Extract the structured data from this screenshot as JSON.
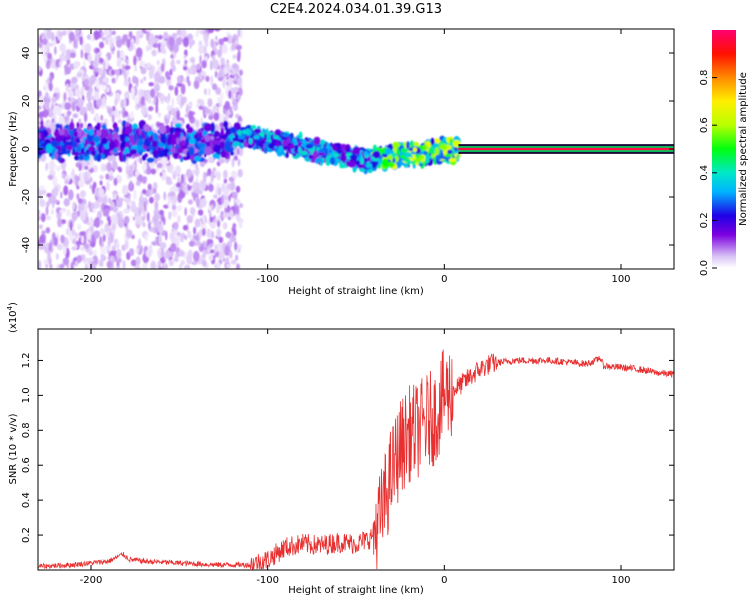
{
  "figure": {
    "title": "C2E4.2024.034.01.39.G13"
  },
  "chart_data": [
    {
      "type": "heatmap",
      "name": "spectrogram",
      "xlabel": "Height of straight line (km)",
      "ylabel": "Frequency (Hz)",
      "xlim": [
        -230,
        130
      ],
      "ylim": [
        -50,
        50
      ],
      "xticks": [
        -200,
        -100,
        0,
        100
      ],
      "xtick_labels": [
        "-200",
        "-100",
        "0",
        "100"
      ],
      "yticks": [
        -40,
        -20,
        0,
        20,
        40
      ],
      "ytick_labels": [
        "-40",
        "-20",
        "0",
        "20",
        "40"
      ],
      "colorbar": {
        "label": "Normalized spectral amplitude",
        "range": [
          0,
          1
        ],
        "ticks": [
          0,
          0.2,
          0.4,
          0.6,
          0.8
        ],
        "tick_labels": [
          "0.0",
          "0.2",
          "0.4",
          "0.6",
          "0.8"
        ],
        "colormap": [
          "#ffffff",
          "#d4b8f5",
          "#7a00e0",
          "#2000e0",
          "#00b0ff",
          "#00e8c0",
          "#00ff00",
          "#c8ff00",
          "#ffff00",
          "#ff8000",
          "#ff0000",
          "#ff0060"
        ]
      },
      "features": [
        {
          "label": "scattered noise",
          "x_range": [
            -230,
            -115
          ],
          "freq_range": [
            -50,
            50
          ],
          "amplitude": 0.12
        },
        {
          "label": "broadband band",
          "x_range": [
            -230,
            -120
          ],
          "freq_center": 3,
          "freq_halfwidth": 8,
          "amplitude": 0.3
        },
        {
          "label": "descending trace",
          "x_range": [
            -120,
            -40
          ],
          "freq_start": 6,
          "freq_end": -5,
          "amplitude": 0.35
        },
        {
          "label": "converging trace",
          "x_range": [
            -40,
            8
          ],
          "freq_start": -4,
          "freq_end": 0,
          "amplitude": 0.55
        },
        {
          "label": "stable tone",
          "x_range": [
            8,
            130
          ],
          "freq_center": 0,
          "freq_halfwidth": 1.2,
          "amplitude": 0.97
        }
      ]
    },
    {
      "type": "line",
      "name": "snr",
      "xlabel": "Height of straight line (km)",
      "ylabel": "SNR (10 * v/v)",
      "y_multiplier_label": "(x10",
      "y_multiplier_exp": "4",
      "xlim": [
        -230,
        130
      ],
      "ylim": [
        0,
        1.38
      ],
      "xticks": [
        -200,
        -100,
        0,
        100
      ],
      "xtick_labels": [
        "-200",
        "-100",
        "0",
        "100"
      ],
      "yticks": [
        0.2,
        0.4,
        0.6,
        0.8,
        1.0,
        1.2
      ],
      "ytick_labels": [
        "0.2",
        "0.4",
        "0.6",
        "0.8",
        "1.0",
        "1.2"
      ],
      "color": "#e83030",
      "series": [
        {
          "name": "SNR",
          "x": [
            -230,
            -210,
            -190,
            -182,
            -178,
            -170,
            -150,
            -130,
            -110,
            -100,
            -90,
            -80,
            -70,
            -60,
            -50,
            -42,
            -36,
            -30,
            -25,
            -20,
            -15,
            -10,
            -5,
            -2,
            0,
            3,
            8,
            14,
            20,
            26,
            32,
            40,
            50,
            60,
            70,
            80,
            86,
            88,
            90,
            100,
            110,
            120,
            130
          ],
          "y": [
            0.02,
            0.03,
            0.05,
            0.09,
            0.06,
            0.05,
            0.04,
            0.03,
            0.03,
            0.06,
            0.13,
            0.15,
            0.14,
            0.16,
            0.15,
            0.18,
            0.3,
            0.55,
            0.7,
            0.78,
            0.8,
            0.85,
            0.88,
            0.95,
            1.0,
            1.02,
            1.05,
            1.1,
            1.15,
            1.18,
            1.19,
            1.2,
            1.2,
            1.2,
            1.19,
            1.18,
            1.2,
            1.22,
            1.17,
            1.16,
            1.15,
            1.13,
            1.12
          ]
        }
      ]
    }
  ]
}
